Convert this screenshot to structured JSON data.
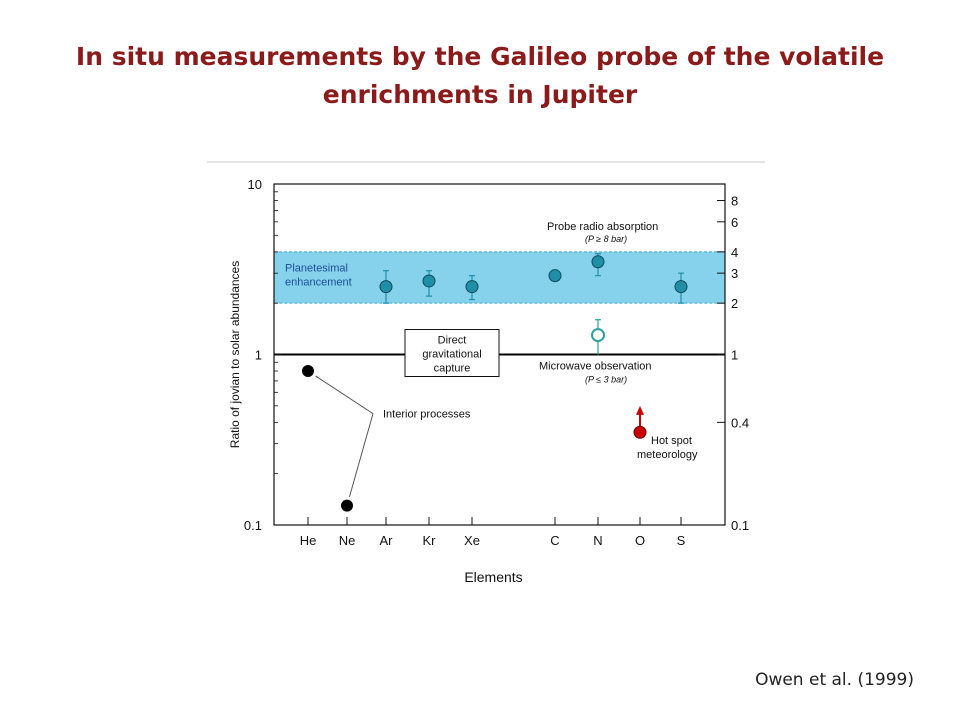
{
  "slide": {
    "title_line1": "In situ measurements by the Galileo probe of the volatile",
    "title_line2": "enrichments in Jupiter",
    "citation": "Owen et al. (1999)"
  },
  "colors": {
    "title": "#8b1a1a",
    "band_fill": "#86d2ec",
    "band_edge": "#3aa9d6",
    "probe_marker": "#1f8fa8",
    "microwave_marker": "#2aa19a",
    "hotspot_marker": "#cc0000",
    "interior_marker": "#000000"
  },
  "chart_data": {
    "type": "scatter",
    "xlabel": "Elements",
    "ylabel": "Ratio of jovian to solar abundances",
    "categories": [
      "He",
      "Ne",
      "Ar",
      "Kr",
      "Xe",
      "C",
      "N",
      "O",
      "S"
    ],
    "ylim": [
      0.1,
      10
    ],
    "yscale": "log",
    "left_ticks": [
      "0.1",
      "1",
      "10"
    ],
    "right_ticks": [
      "8",
      "6",
      "4",
      "3",
      "2",
      "1",
      "0.4",
      "0.1"
    ],
    "right_tick_values": [
      8,
      6,
      4,
      3,
      2,
      1,
      0.4,
      0.1
    ],
    "reference_line": 1,
    "band": {
      "lo": 2,
      "hi": 4,
      "label_line1": "Planetesimal",
      "label_line2": "enhancement"
    },
    "series": [
      {
        "name": "Probe radio absorption",
        "label_line1": "Probe radio absorption",
        "label_line2": "(P ≥ 8 bar)",
        "points": [
          {
            "x": "Ar",
            "y": 2.5,
            "lo": 2.0,
            "hi": 3.1
          },
          {
            "x": "Kr",
            "y": 2.7,
            "lo": 2.2,
            "hi": 3.1
          },
          {
            "x": "Xe",
            "y": 2.5,
            "lo": 2.1,
            "hi": 2.9
          },
          {
            "x": "C",
            "y": 2.9,
            "lo": 2.7,
            "hi": 3.1
          },
          {
            "x": "N",
            "y": 3.5,
            "lo": 2.9,
            "hi": 3.9
          },
          {
            "x": "S",
            "y": 2.5,
            "lo": 2.0,
            "hi": 3.0
          }
        ]
      },
      {
        "name": "Microwave observation",
        "label_line1": "Microwave observation",
        "label_line2": "(P ≤ 3 bar)",
        "points": [
          {
            "x": "N",
            "y": 1.3,
            "lo": 1.0,
            "hi": 1.6
          }
        ]
      },
      {
        "name": "Hot spot meteorology",
        "label_line1": "Hot spot",
        "label_line2": "meteorology",
        "points": [
          {
            "x": "O",
            "y": 0.35,
            "arrow_to": 0.5
          }
        ]
      },
      {
        "name": "Interior processes",
        "label_line1": "Interior processes",
        "points": [
          {
            "x": "He",
            "y": 0.8
          },
          {
            "x": "Ne",
            "y": 0.13
          }
        ]
      }
    ],
    "annotations": {
      "direct_capture_line1": "Direct",
      "direct_capture_line2": "gravitational",
      "direct_capture_line3": "capture"
    },
    "grid": false,
    "legend": "none"
  }
}
